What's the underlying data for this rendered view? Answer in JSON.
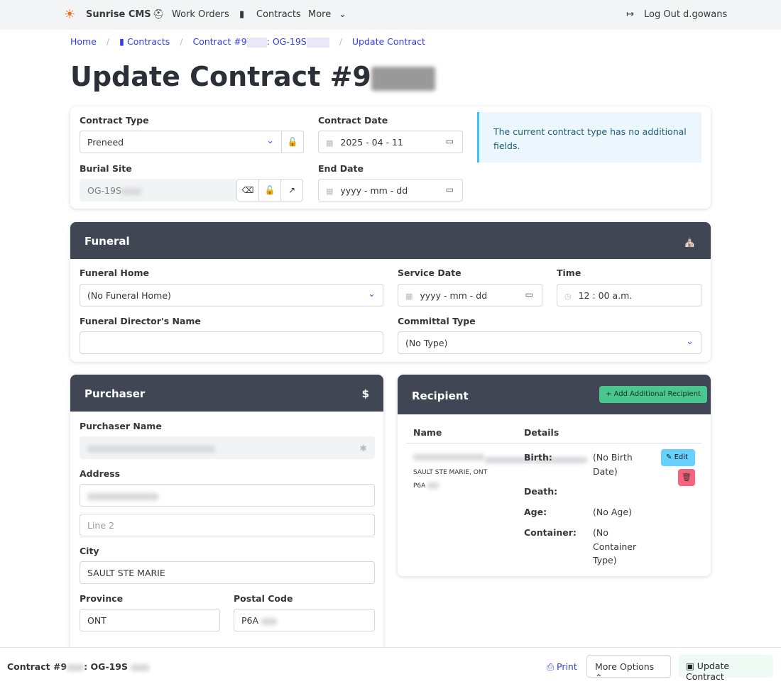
{
  "nav": {
    "brand": "Sunrise CMS",
    "work_orders": "Work Orders",
    "contracts": "Contracts",
    "more": "More",
    "logout": "Log Out d.gowans"
  },
  "breadcrumb": {
    "home": "Home",
    "contracts": "Contracts",
    "contract": "Contract #9",
    "contract_mid": ": OG-19S",
    "current": "Update Contract"
  },
  "page": {
    "title": "Update Contract #9"
  },
  "contract": {
    "type_label": "Contract Type",
    "type_value": "Preneed",
    "date_label": "Contract Date",
    "date_value": "2025 - 04 - 11",
    "site_label": "Burial Site",
    "site_value": "OG-19S",
    "end_label": "End Date",
    "end_value": "yyyy - mm - dd",
    "notice": "The current contract type has no additional fields."
  },
  "funeral": {
    "title": "Funeral",
    "home_label": "Funeral Home",
    "home_value": "(No Funeral Home)",
    "service_label": "Service Date",
    "service_value": "yyyy - mm - dd",
    "time_label": "Time",
    "time_value": "12 : 00  a.m.",
    "director_label": "Funeral Director's Name",
    "director_value": "",
    "committal_label": "Committal Type",
    "committal_value": "(No Type)"
  },
  "purchaser": {
    "title": "Purchaser",
    "name_label": "Purchaser Name",
    "address_label": "Address",
    "line2_placeholder": "Line 2",
    "city_label": "City",
    "city_value": "SAULT STE MARIE",
    "province_label": "Province",
    "province_value": "ONT",
    "postal_label": "Postal Code",
    "postal_value": "P6A"
  },
  "recipient": {
    "title": "Recipient",
    "add_button": "Add Additional Recipient",
    "col_name": "Name",
    "col_details": "Details",
    "city_line": "SAULT STE MARIE, ONT",
    "postal": "P6A",
    "birth_label": "Birth:",
    "birth_value": "(No Birth Date)",
    "death_label": "Death:",
    "age_label": "Age:",
    "age_value": "(No Age)",
    "container_label": "Container:",
    "container_value": "(No Container Type)",
    "edit": "Edit"
  },
  "footer": {
    "contract": "Contract #9",
    "contract_mid": ": OG-19S",
    "print": "Print",
    "more_options": "More Options",
    "update": "Update Contract"
  },
  "colors": {
    "header": "#414654",
    "link": "#2e3cf0",
    "success": "#48c78e",
    "info": "#66d1ff",
    "danger": "#f14668"
  }
}
